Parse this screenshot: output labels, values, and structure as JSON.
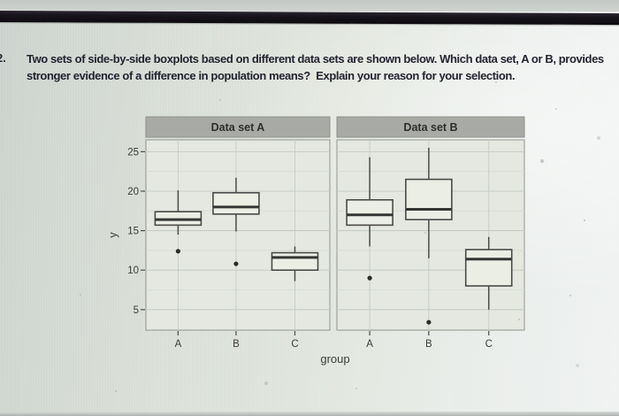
{
  "question": {
    "number": "2.",
    "line1": "Two sets of side-by-side boxplots based on different data sets are shown below. Which data set, A or B, provides",
    "line2": "stronger evidence of a difference in population means?  Explain your reason for your selection."
  },
  "chart_data": {
    "type": "boxplot",
    "categories": [
      "A",
      "B",
      "C"
    ],
    "xlabel": "group",
    "ylabel": "y",
    "yticks": [
      5,
      10,
      15,
      20,
      25
    ],
    "ylim": [
      2.4,
      26.5
    ],
    "grid": true,
    "legend": false,
    "facets": [
      {
        "title": "Data set A",
        "boxes": [
          {
            "group": "A",
            "whisker_low": 14.5,
            "q1": 15.7,
            "median": 16.4,
            "q3": 17.4,
            "whisker_high": 20.1,
            "outliers": [
              12.4
            ]
          },
          {
            "group": "B",
            "whisker_low": 14.9,
            "q1": 17.1,
            "median": 18.0,
            "q3": 19.8,
            "whisker_high": 21.7,
            "outliers": [
              10.8
            ]
          },
          {
            "group": "C",
            "whisker_low": 8.6,
            "q1": 10.0,
            "median": 11.6,
            "q3": 12.2,
            "whisker_high": 13.0,
            "outliers": []
          }
        ]
      },
      {
        "title": "Data set B",
        "boxes": [
          {
            "group": "A",
            "whisker_low": 13.0,
            "q1": 15.7,
            "median": 17.0,
            "q3": 18.9,
            "whisker_high": 24.3,
            "outliers": [
              9.0
            ]
          },
          {
            "group": "B",
            "whisker_low": 11.5,
            "q1": 16.4,
            "median": 17.7,
            "q3": 21.5,
            "whisker_high": 25.5,
            "outliers": [
              3.4
            ]
          },
          {
            "group": "C",
            "whisker_low": 5.0,
            "q1": 8.0,
            "median": 11.4,
            "q3": 12.6,
            "whisker_high": 14.2,
            "outliers": []
          }
        ]
      }
    ],
    "colors": {
      "strip_bg": "#a8aaa5",
      "strip_text": "#2f2f2d",
      "panel_bg": "#e4e8e0",
      "panel_border": "#90968f",
      "grid_major": "#c6ccc5",
      "grid_minor": "#d5dad2",
      "box_stroke": "#4a4a48",
      "box_fill": "#eaeee5",
      "median": "#353533",
      "outlier": "#2b2b29",
      "axis_text": "#3c3c3a"
    }
  }
}
